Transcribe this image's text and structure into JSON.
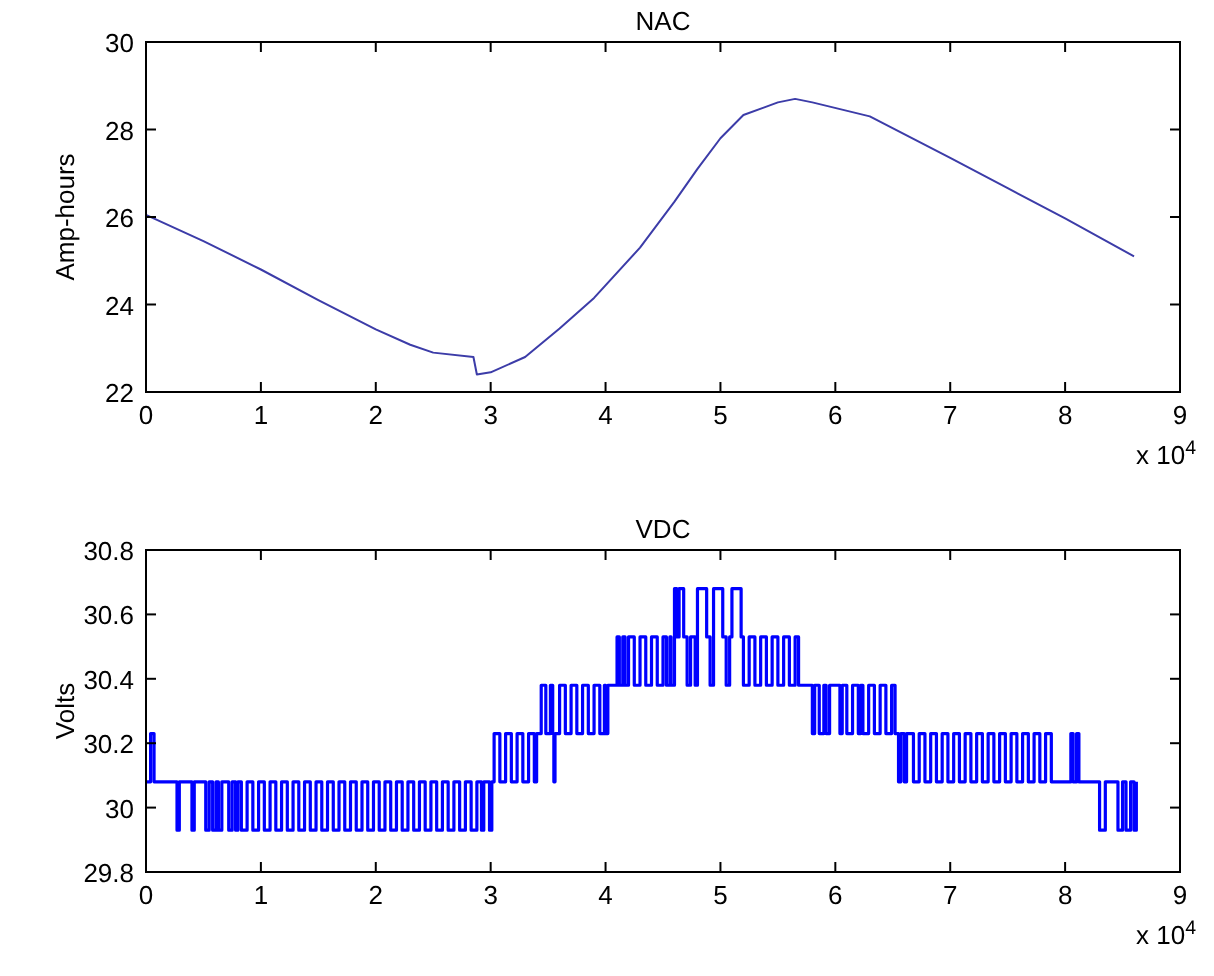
{
  "chart_data": [
    {
      "type": "line",
      "title": "NAC",
      "ylabel": "Amp-hours",
      "color": "#3c3ca8",
      "annotations": [
        "x 10$^{4}$"
      ],
      "x": [
        0,
        0.5,
        1,
        1.5,
        2,
        2.3,
        2.5,
        2.85,
        2.88,
        3,
        3.3,
        3.6,
        3.9,
        4.3,
        4.6,
        4.8,
        5,
        5.2,
        5.5,
        5.65,
        5.8,
        6.3,
        7,
        7.5,
        8,
        8.6
      ],
      "values": [
        26.05,
        25.45,
        24.8,
        24.1,
        23.43,
        23.08,
        22.9,
        22.8,
        22.4,
        22.45,
        22.8,
        23.45,
        24.15,
        25.3,
        26.35,
        27.1,
        27.8,
        28.33,
        28.62,
        28.7,
        28.62,
        28.3,
        27.35,
        26.66,
        25.97,
        25.1
      ],
      "xlim": [
        0,
        9
      ],
      "xticks": [
        0,
        1,
        2,
        3,
        4,
        5,
        6,
        7,
        8,
        9
      ],
      "ylim": [
        22,
        30
      ],
      "yticks": [
        22,
        24,
        26,
        28,
        30
      ]
    },
    {
      "type": "step",
      "title": "VDC",
      "ylabel": "Volts",
      "color": "#0000ff",
      "annotations": [
        "x 10$^{4}$"
      ],
      "x": [
        0,
        0.04,
        0.07,
        0.27,
        0.29,
        0.4,
        0.42,
        0.52,
        0.55,
        0.58,
        0.61,
        0.63,
        0.66,
        0.72,
        0.75,
        0.78,
        0.8,
        0.83,
        0.88,
        0.93,
        0.98,
        1.03,
        1.08,
        1.13,
        1.18,
        1.23,
        1.28,
        1.33,
        1.38,
        1.43,
        1.48,
        1.53,
        1.58,
        1.63,
        1.68,
        1.73,
        1.78,
        1.83,
        1.88,
        1.93,
        1.98,
        2.03,
        2.08,
        2.13,
        2.18,
        2.23,
        2.28,
        2.33,
        2.38,
        2.43,
        2.48,
        2.53,
        2.58,
        2.63,
        2.68,
        2.73,
        2.78,
        2.83,
        2.88,
        2.92,
        2.94,
        2.99,
        3.01,
        3.03,
        3.08,
        3.13,
        3.18,
        3.23,
        3.28,
        3.33,
        3.38,
        3.4,
        3.44,
        3.48,
        3.52,
        3.54,
        3.55,
        3.56,
        3.6,
        3.65,
        3.7,
        3.75,
        3.8,
        3.85,
        3.9,
        3.95,
        3.99,
        4,
        4.02,
        4.1,
        4.12,
        4.15,
        4.17,
        4.2,
        4.25,
        4.3,
        4.35,
        4.4,
        4.45,
        4.5,
        4.53,
        4.56,
        4.57,
        4.6,
        4.62,
        4.64,
        4.68,
        4.71,
        4.74,
        4.78,
        4.8,
        4.88,
        4.91,
        4.94,
        5.02,
        5.05,
        5.08,
        5.1,
        5.18,
        5.2,
        5.25,
        5.3,
        5.35,
        5.4,
        5.45,
        5.5,
        5.55,
        5.6,
        5.65,
        5.68,
        5.8,
        5.82,
        5.86,
        5.9,
        5.92,
        5.95,
        6.04,
        6.06,
        6.1,
        6.15,
        6.2,
        6.22,
        6.24,
        6.29,
        6.34,
        6.39,
        6.44,
        6.49,
        6.52,
        6.55,
        6.57,
        6.6,
        6.62,
        6.68,
        6.73,
        6.78,
        6.83,
        6.88,
        6.93,
        6.98,
        7.03,
        7.08,
        7.13,
        7.18,
        7.23,
        7.28,
        7.33,
        7.38,
        7.43,
        7.48,
        7.53,
        7.58,
        7.63,
        7.68,
        7.73,
        7.78,
        7.83,
        7.88,
        8.05,
        8.07,
        8.1,
        8.12,
        8.3,
        8.35,
        8.46,
        8.5,
        8.53,
        8.57,
        8.6,
        8.62
      ],
      "values": [
        30.08,
        30.23,
        30.08,
        29.93,
        30.08,
        29.93,
        30.08,
        29.93,
        30.08,
        29.93,
        30.08,
        29.93,
        30.08,
        29.93,
        30.08,
        29.93,
        30.08,
        29.93,
        30.08,
        29.93,
        30.08,
        29.93,
        30.08,
        29.93,
        30.08,
        29.93,
        30.08,
        29.93,
        30.08,
        29.93,
        30.08,
        29.93,
        30.08,
        29.93,
        30.08,
        29.93,
        30.08,
        29.93,
        30.08,
        29.93,
        30.08,
        29.93,
        30.08,
        29.93,
        30.08,
        29.93,
        30.08,
        29.93,
        30.08,
        29.93,
        30.08,
        29.93,
        30.08,
        29.93,
        30.08,
        29.93,
        30.08,
        29.93,
        30.08,
        29.93,
        30.08,
        29.93,
        30.08,
        30.23,
        30.08,
        30.23,
        30.08,
        30.23,
        30.08,
        30.23,
        30.08,
        30.23,
        30.38,
        30.23,
        30.38,
        30.23,
        30.08,
        30.23,
        30.38,
        30.23,
        30.38,
        30.23,
        30.38,
        30.23,
        30.38,
        30.23,
        30.38,
        30.23,
        30.38,
        30.53,
        30.38,
        30.53,
        30.38,
        30.53,
        30.38,
        30.53,
        30.38,
        30.53,
        30.38,
        30.53,
        30.38,
        30.53,
        30.38,
        30.68,
        30.53,
        30.68,
        30.53,
        30.38,
        30.53,
        30.38,
        30.68,
        30.53,
        30.38,
        30.68,
        30.53,
        30.38,
        30.53,
        30.68,
        30.53,
        30.38,
        30.53,
        30.38,
        30.53,
        30.38,
        30.53,
        30.38,
        30.53,
        30.38,
        30.53,
        30.38,
        30.23,
        30.38,
        30.23,
        30.38,
        30.23,
        30.38,
        30.23,
        30.38,
        30.23,
        30.38,
        30.23,
        30.38,
        30.23,
        30.38,
        30.23,
        30.38,
        30.23,
        30.38,
        30.23,
        30.08,
        30.23,
        30.08,
        30.23,
        30.08,
        30.23,
        30.08,
        30.23,
        30.08,
        30.23,
        30.08,
        30.23,
        30.08,
        30.23,
        30.08,
        30.23,
        30.08,
        30.23,
        30.08,
        30.23,
        30.08,
        30.23,
        30.08,
        30.23,
        30.08,
        30.23,
        30.08,
        30.23,
        30.08,
        30.23,
        30.08,
        30.23,
        30.08,
        29.93,
        30.08,
        29.93,
        30.08,
        29.93,
        30.08,
        29.93,
        30.08
      ],
      "xlim": [
        0,
        9
      ],
      "xticks": [
        0,
        1,
        2,
        3,
        4,
        5,
        6,
        7,
        8,
        9
      ],
      "ylim": [
        29.8,
        30.8
      ],
      "yticks": [
        29.8,
        30,
        30.2,
        30.4,
        30.6,
        30.8
      ]
    }
  ]
}
